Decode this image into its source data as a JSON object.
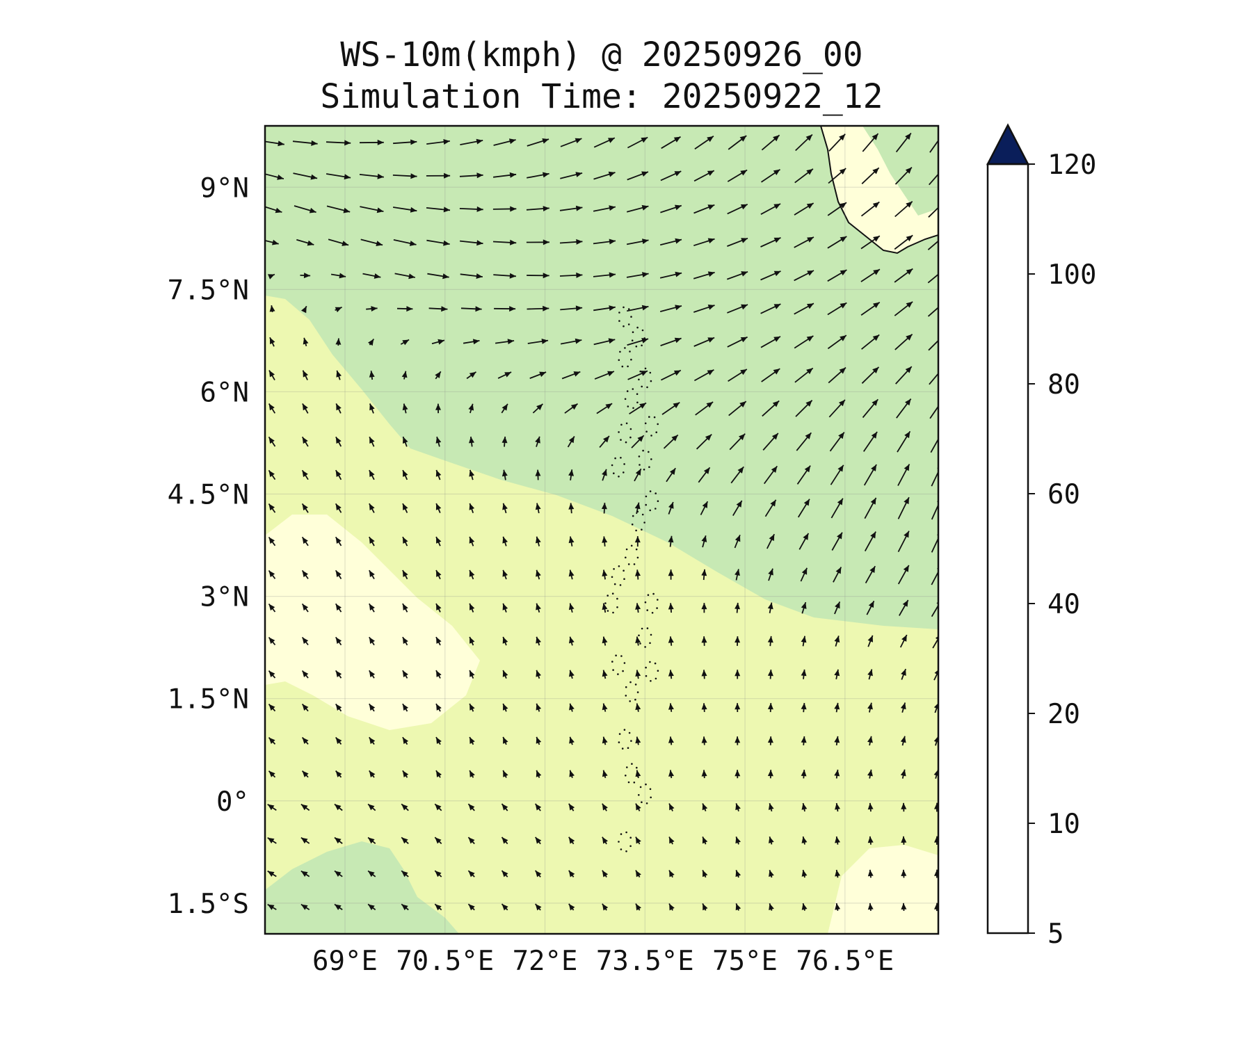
{
  "chart_data": {
    "type": "map",
    "title_line1": "WS-10m(kmph) @ 20250926_00",
    "title_line2": "Simulation Time: 20250922_12",
    "variable": "10 m wind speed (kmph) with wind direction vectors",
    "lon_range": [
      67.8,
      77.9
    ],
    "lat_range": [
      -1.95,
      9.9
    ],
    "x_ticks": [
      {
        "value": 69,
        "label": "69°E"
      },
      {
        "value": 70.5,
        "label": "70.5°E"
      },
      {
        "value": 72,
        "label": "72°E"
      },
      {
        "value": 73.5,
        "label": "73.5°E"
      },
      {
        "value": 75,
        "label": "75°E"
      },
      {
        "value": 76.5,
        "label": "76.5°E"
      }
    ],
    "y_ticks": [
      {
        "value": 9,
        "label": "9°N"
      },
      {
        "value": 7.5,
        "label": "7.5°N"
      },
      {
        "value": 6,
        "label": "6°N"
      },
      {
        "value": 4.5,
        "label": "4.5°N"
      },
      {
        "value": 3,
        "label": "3°N"
      },
      {
        "value": 1.5,
        "label": "1.5°N"
      },
      {
        "value": 0,
        "label": "0°"
      },
      {
        "value": -1.5,
        "label": "1.5°S"
      }
    ],
    "colorbar": {
      "boundaries": [
        5,
        10,
        20,
        40,
        60,
        80,
        100,
        120
      ],
      "labels": [
        "5",
        "10",
        "20",
        "40",
        "60",
        "80",
        "100",
        "120"
      ],
      "colors": [
        "#ffffd9",
        "#edf8b1",
        "#c7e9b4",
        "#7fcdbb",
        "#2ea6c4",
        "#2262aa",
        "#1f2f84"
      ],
      "extend_color": "#0a1e5a",
      "extend": "max"
    },
    "field_summary": {
      "north_of_band": "20-40 kmph westerly to west-southwesterly winds",
      "south_of_band": "5-20 kmph southeasterly to southerly winds",
      "band_boundary": "runs from about 68.5°E 7.5°N southeast to about 77.9°E 2.3°N"
    },
    "features": [
      "Southwest tip of India (top-right)",
      "Maldives atolls (dotted, ~73.5°E)"
    ]
  }
}
